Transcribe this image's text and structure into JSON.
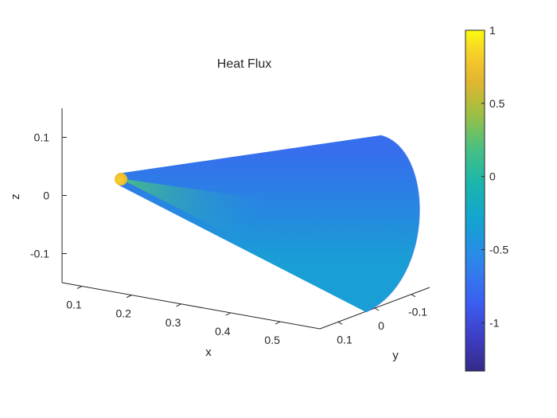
{
  "chart_data": {
    "type": "surface3d",
    "title": "Heat Flux",
    "xlabel": "x",
    "ylabel": "y",
    "zlabel": "z",
    "x_ticks": [
      "0.1",
      "0.2",
      "0.3",
      "0.4",
      "0.5"
    ],
    "x_tick_values": [
      0.1,
      0.2,
      0.3,
      0.4,
      0.5
    ],
    "y_ticks": [
      "0.1",
      "0",
      "-0.1"
    ],
    "y_tick_values": [
      0.1,
      0,
      -0.1
    ],
    "z_ticks": [
      "0.1",
      "0",
      "-0.1"
    ],
    "z_tick_values": [
      0.1,
      0,
      -0.1
    ],
    "xlim": [
      0.06,
      0.58
    ],
    "ylim": [
      -0.15,
      0.15
    ],
    "zlim": [
      -0.15,
      0.15
    ],
    "colormap": "parula",
    "colorbar": {
      "ticks": [
        "1",
        "0.5",
        "0",
        "-0.5",
        "-1"
      ],
      "tick_values": [
        1,
        0.5,
        0,
        -0.5,
        -1
      ],
      "clim": [
        -1.33,
        1
      ],
      "placement": "right"
    },
    "surface": {
      "shape": "cone",
      "apex_value": 0.85,
      "near_apex_value": 0.2,
      "body_top_value": -0.75,
      "body_bottom_value": -0.35
    }
  }
}
